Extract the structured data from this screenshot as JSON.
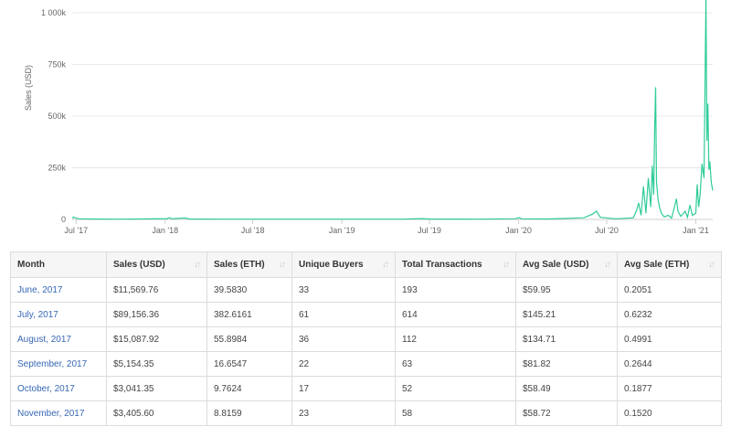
{
  "chart_data": {
    "type": "line",
    "title": "",
    "xlabel": "",
    "ylabel": "Sales (USD)",
    "ylim": [
      0,
      1000000
    ],
    "y_ticks": [
      {
        "value": 0,
        "label": "0"
      },
      {
        "value": 250000,
        "label": "250k"
      },
      {
        "value": 500000,
        "label": "500k"
      },
      {
        "value": 750000,
        "label": "750k"
      },
      {
        "value": 1000000,
        "label": "1 000k"
      }
    ],
    "x_ticks": [
      {
        "date": "2017-07-01",
        "label": "Jul '17"
      },
      {
        "date": "2018-01-01",
        "label": "Jan '18"
      },
      {
        "date": "2018-07-01",
        "label": "Jul '18"
      },
      {
        "date": "2019-01-01",
        "label": "Jan '19"
      },
      {
        "date": "2019-07-01",
        "label": "Jul '19"
      },
      {
        "date": "2020-01-01",
        "label": "Jan '20"
      },
      {
        "date": "2020-07-01",
        "label": "Jul '20"
      },
      {
        "date": "2021-01-01",
        "label": "Jan '21"
      }
    ],
    "xlim": [
      "2017-06-23",
      "2021-02-05"
    ],
    "grid": true,
    "color": "#2ecc9a",
    "series": [
      {
        "points": [
          [
            "2017-06-23",
            5000
          ],
          [
            "2017-06-26",
            12000
          ],
          [
            "2017-07-01",
            6000
          ],
          [
            "2017-07-08",
            3000
          ],
          [
            "2017-08-01",
            2000
          ],
          [
            "2017-10-01",
            1500
          ],
          [
            "2017-12-01",
            2500
          ],
          [
            "2018-01-05",
            4000
          ],
          [
            "2018-01-10",
            9000
          ],
          [
            "2018-01-14",
            3000
          ],
          [
            "2018-02-10",
            7000
          ],
          [
            "2018-02-20",
            2000
          ],
          [
            "2018-05-01",
            1500
          ],
          [
            "2018-09-01",
            1500
          ],
          [
            "2019-01-01",
            1500
          ],
          [
            "2019-05-01",
            1500
          ],
          [
            "2019-06-15",
            4000
          ],
          [
            "2019-07-01",
            2000
          ],
          [
            "2019-10-01",
            1500
          ],
          [
            "2019-12-25",
            3000
          ],
          [
            "2020-01-02",
            9000
          ],
          [
            "2020-01-07",
            3000
          ],
          [
            "2020-03-01",
            2000
          ],
          [
            "2020-05-15",
            8000
          ],
          [
            "2020-06-01",
            25000
          ],
          [
            "2020-06-10",
            40000
          ],
          [
            "2020-06-18",
            10000
          ],
          [
            "2020-07-20",
            3000
          ],
          [
            "2020-08-25",
            8000
          ],
          [
            "2020-09-01",
            45000
          ],
          [
            "2020-09-05",
            80000
          ],
          [
            "2020-09-10",
            20000
          ],
          [
            "2020-09-15",
            160000
          ],
          [
            "2020-09-20",
            30000
          ],
          [
            "2020-09-25",
            200000
          ],
          [
            "2020-09-30",
            60000
          ],
          [
            "2020-10-03",
            260000
          ],
          [
            "2020-10-06",
            120000
          ],
          [
            "2020-10-08",
            420000
          ],
          [
            "2020-10-10",
            640000
          ],
          [
            "2020-10-12",
            180000
          ],
          [
            "2020-10-15",
            100000
          ],
          [
            "2020-10-18",
            60000
          ],
          [
            "2020-10-22",
            30000
          ],
          [
            "2020-10-28",
            12000
          ],
          [
            "2020-11-05",
            20000
          ],
          [
            "2020-11-12",
            6000
          ],
          [
            "2020-11-22",
            100000
          ],
          [
            "2020-11-25",
            40000
          ],
          [
            "2020-12-01",
            15000
          ],
          [
            "2020-12-10",
            40000
          ],
          [
            "2020-12-15",
            10000
          ],
          [
            "2020-12-20",
            70000
          ],
          [
            "2020-12-25",
            20000
          ],
          [
            "2021-01-01",
            30000
          ],
          [
            "2021-01-04",
            170000
          ],
          [
            "2021-01-07",
            60000
          ],
          [
            "2021-01-10",
            120000
          ],
          [
            "2021-01-14",
            270000
          ],
          [
            "2021-01-18",
            200000
          ],
          [
            "2021-01-22",
            1080000
          ],
          [
            "2021-01-24",
            380000
          ],
          [
            "2021-01-26",
            560000
          ],
          [
            "2021-01-28",
            240000
          ],
          [
            "2021-01-30",
            280000
          ],
          [
            "2021-02-02",
            180000
          ],
          [
            "2021-02-05",
            140000
          ]
        ]
      }
    ]
  },
  "table": {
    "headers": [
      "Month",
      "Sales (USD)",
      "Sales (ETH)",
      "Unique Buyers",
      "Total Transactions",
      "Avg Sale (USD)",
      "Avg Sale (ETH)"
    ],
    "sort_icon": "sort-arrows-icon",
    "rows": [
      [
        "June, 2017",
        "$11,569.76",
        "39.5830",
        "33",
        "193",
        "$59.95",
        "0.2051"
      ],
      [
        "July, 2017",
        "$89,156.36",
        "382.6161",
        "61",
        "614",
        "$145.21",
        "0.6232"
      ],
      [
        "August, 2017",
        "$15,087.92",
        "55.8984",
        "36",
        "112",
        "$134.71",
        "0.4991"
      ],
      [
        "September, 2017",
        "$5,154.35",
        "16.6547",
        "22",
        "63",
        "$81.82",
        "0.2644"
      ],
      [
        "October, 2017",
        "$3,041.35",
        "9.7624",
        "17",
        "52",
        "$58.49",
        "0.1877"
      ],
      [
        "November, 2017",
        "$3,405.60",
        "8.8159",
        "23",
        "58",
        "$58.72",
        "0.1520"
      ]
    ]
  }
}
